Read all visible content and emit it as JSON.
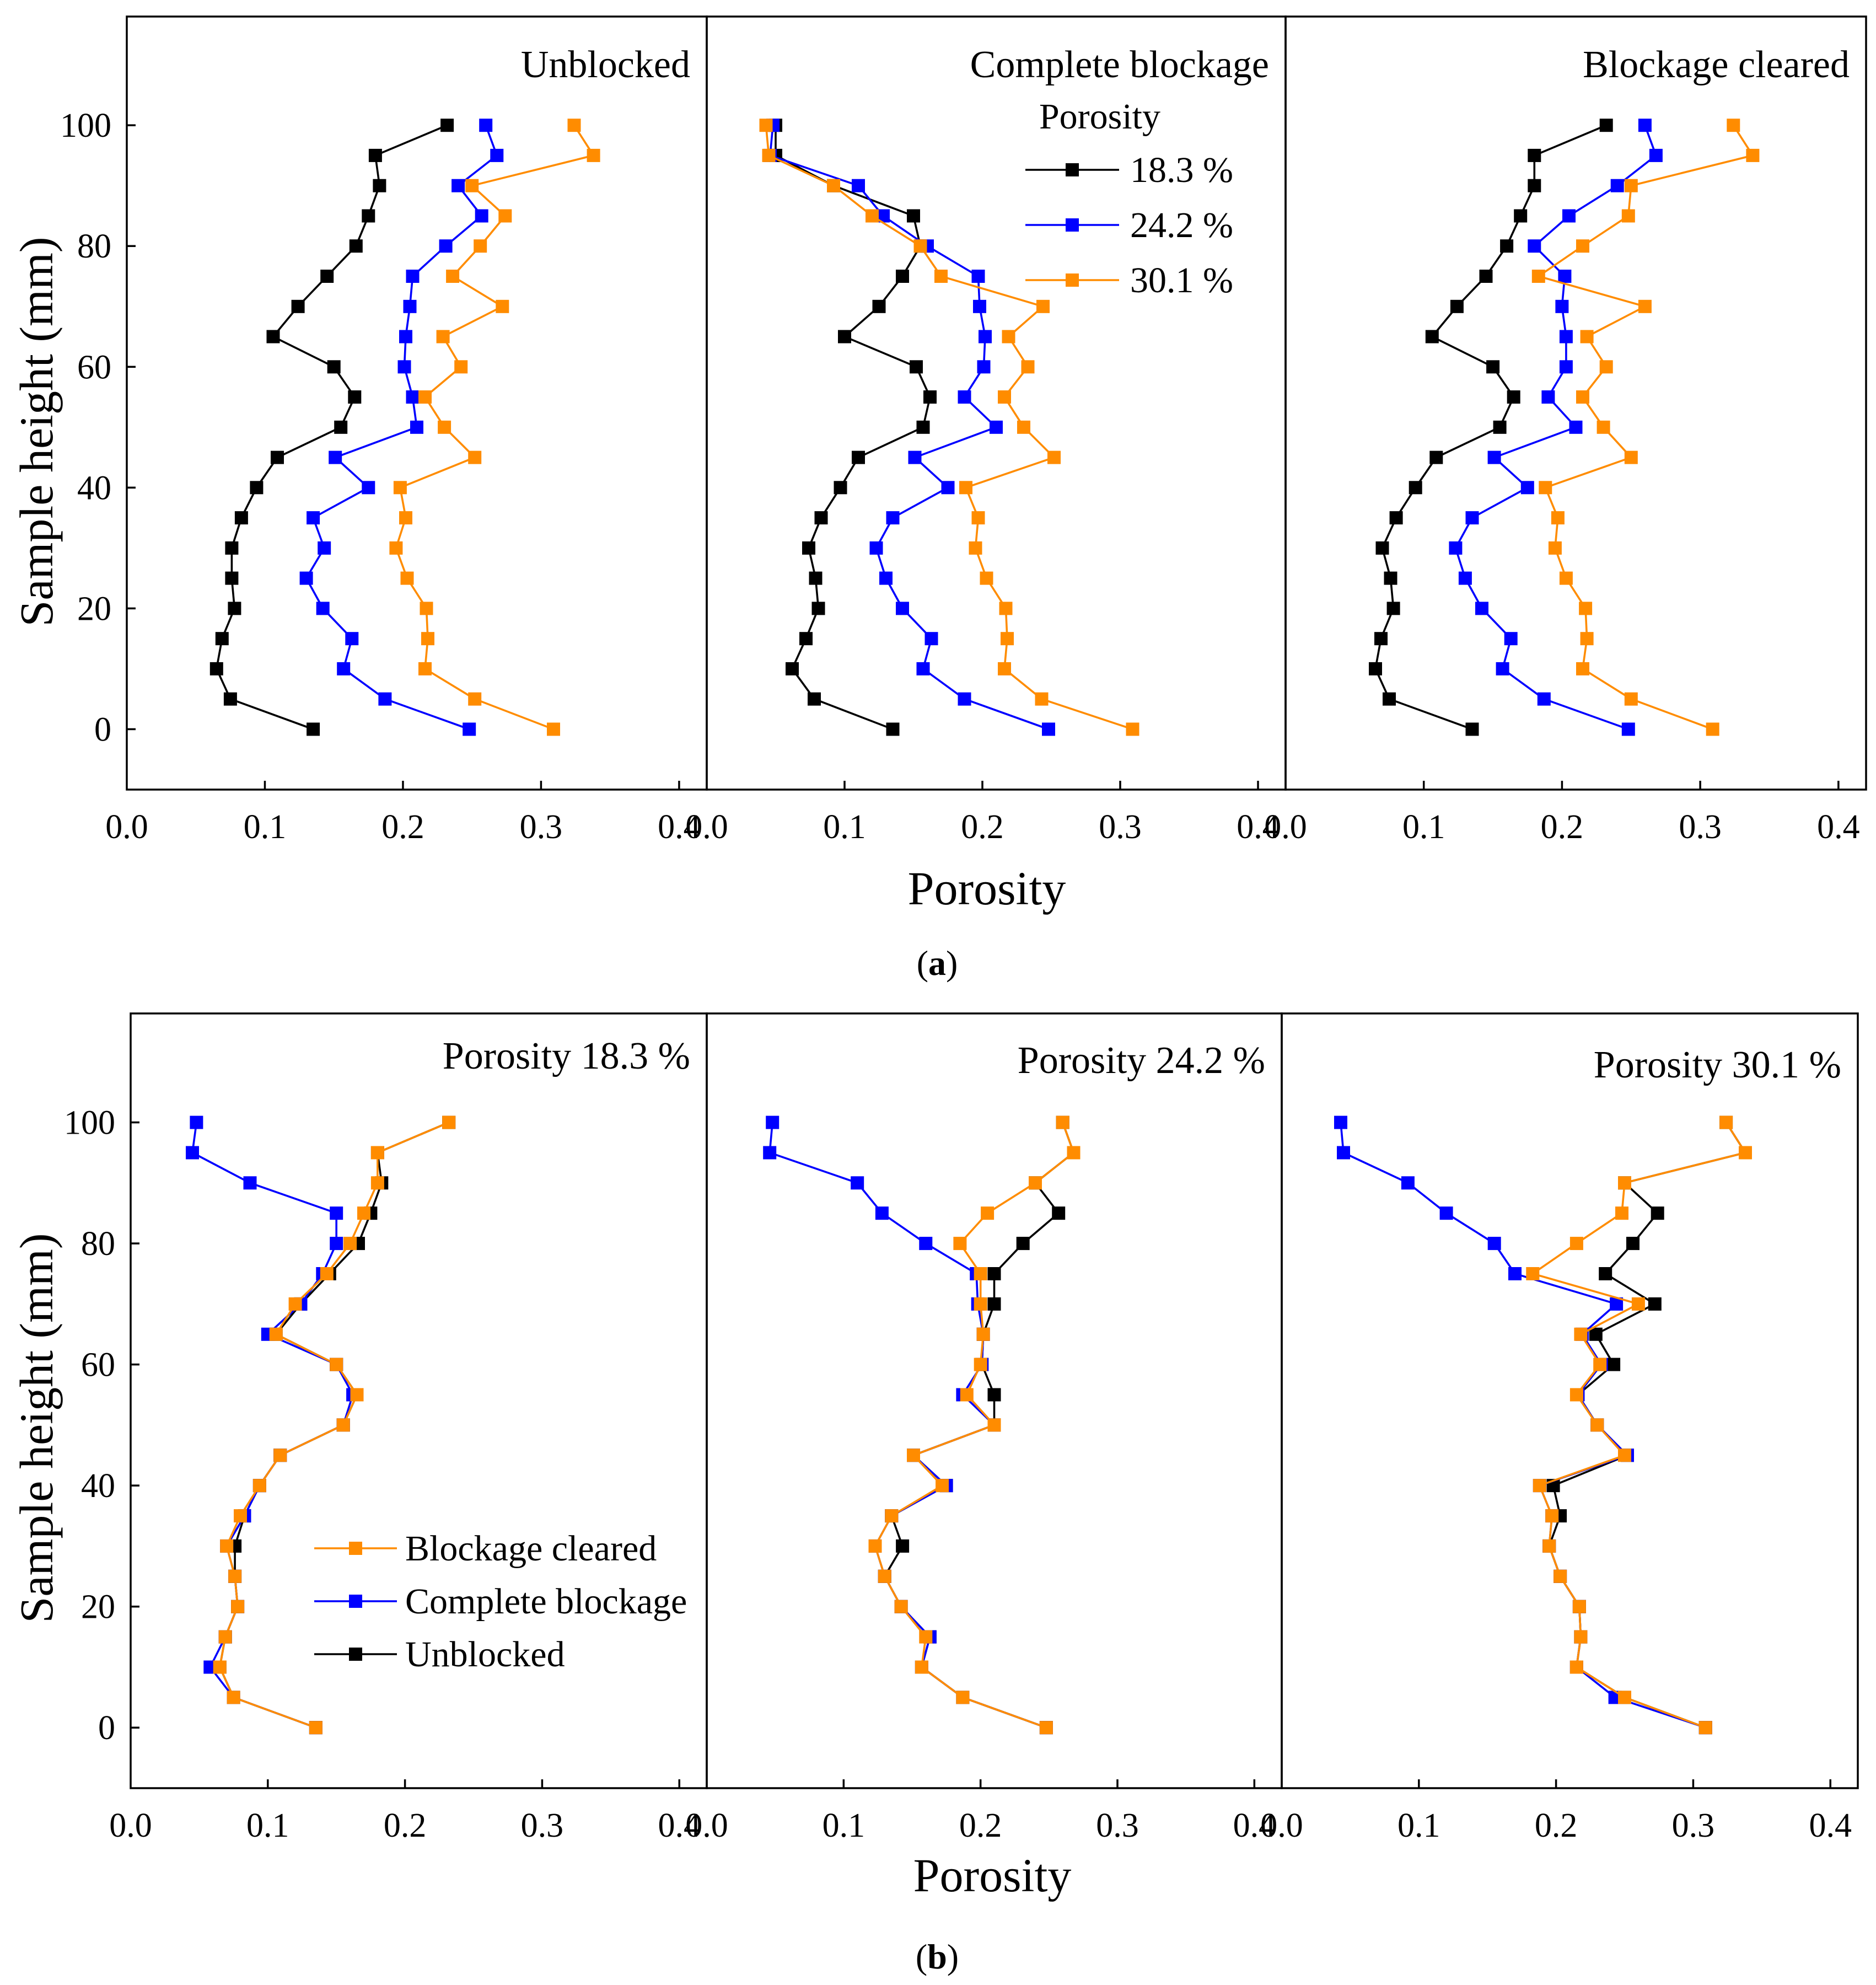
{
  "colors": {
    "series_183": "#000000",
    "series_242": "#0000ff",
    "series_301": "#ff8c00",
    "unblocked": "#000000",
    "complete_blockage": "#0000ff",
    "blockage_cleared": "#ff8c00"
  },
  "figure_a": {
    "caption_open": "(",
    "caption_letter": "a",
    "caption_close": ")",
    "xlabel": "Porosity",
    "ylabel": "Sample height (mm)",
    "legend": {
      "title": "Porosity",
      "items": [
        "18.3 %",
        "24.2 %",
        "30.1 %"
      ]
    }
  },
  "figure_b": {
    "caption_open": "(",
    "caption_letter": "b",
    "caption_close": ")",
    "xlabel": "Porosity",
    "ylabel": "Sample height (mm)",
    "legend": {
      "items": [
        "Blockage cleared",
        "Complete blockage",
        "Unblocked"
      ]
    }
  },
  "chart_data": [
    {
      "type": "line",
      "figure": "a",
      "title": "Unblocked",
      "xlabel": "Porosity",
      "ylabel": "Sample height (mm)",
      "xlim": [
        0,
        0.42
      ],
      "ylim": [
        -10,
        118
      ],
      "xticks": [
        "0.0",
        "0.1",
        "0.2",
        "0.3",
        "0.4"
      ],
      "yticks": [
        "0",
        "20",
        "40",
        "60",
        "80",
        "100"
      ],
      "series": [
        {
          "name": "18.3 %",
          "color_key": "series_183",
          "x": [
            0.135,
            0.075,
            0.065,
            0.069,
            0.078,
            0.076,
            0.076,
            0.083,
            0.094,
            0.109,
            0.155,
            0.165,
            0.15,
            0.106,
            0.124,
            0.145,
            0.166,
            0.175,
            0.183,
            0.18,
            0.232
          ],
          "y": [
            0,
            5,
            10,
            15,
            20,
            25,
            30,
            35,
            40,
            45,
            50,
            55,
            60,
            65,
            70,
            75,
            80,
            85,
            90,
            95,
            100
          ]
        },
        {
          "name": "24.2 %",
          "color_key": "series_242",
          "x": [
            0.248,
            0.187,
            0.157,
            0.163,
            0.142,
            0.13,
            0.143,
            0.135,
            0.175,
            0.151,
            0.21,
            0.207,
            0.201,
            0.202,
            0.205,
            0.207,
            0.231,
            0.257,
            0.24,
            0.268,
            0.26
          ],
          "y": [
            0,
            5,
            10,
            15,
            20,
            25,
            30,
            35,
            40,
            45,
            50,
            55,
            60,
            65,
            70,
            75,
            80,
            85,
            90,
            95,
            100
          ]
        },
        {
          "name": "30.1 %",
          "color_key": "series_301",
          "x": [
            0.309,
            0.252,
            0.216,
            0.218,
            0.217,
            0.203,
            0.195,
            0.202,
            0.198,
            0.252,
            0.23,
            0.216,
            0.242,
            0.229,
            0.272,
            0.236,
            0.256,
            0.274,
            0.25,
            0.338,
            0.324
          ],
          "y": [
            0,
            5,
            10,
            15,
            20,
            25,
            30,
            35,
            40,
            45,
            50,
            55,
            60,
            65,
            70,
            75,
            80,
            85,
            90,
            95,
            100
          ]
        }
      ]
    },
    {
      "type": "line",
      "figure": "a",
      "title": "Complete blockage",
      "xlabel": "Porosity",
      "ylabel": "Sample height (mm)",
      "xlim": [
        0,
        0.42
      ],
      "ylim": [
        -10,
        118
      ],
      "xticks": [
        "0.0",
        "0.1",
        "0.2",
        "0.3",
        "0.4"
      ],
      "yticks": [
        "0",
        "20",
        "40",
        "60",
        "80",
        "100"
      ],
      "series": [
        {
          "name": "18.3 %",
          "color_key": "series_183",
          "x": [
            0.135,
            0.078,
            0.062,
            0.072,
            0.081,
            0.079,
            0.074,
            0.083,
            0.097,
            0.11,
            0.157,
            0.162,
            0.152,
            0.1,
            0.125,
            0.142,
            0.155,
            0.15,
            0.092,
            0.05,
            0.05
          ],
          "y": [
            0,
            5,
            10,
            15,
            20,
            25,
            30,
            35,
            40,
            45,
            50,
            55,
            60,
            65,
            70,
            75,
            80,
            85,
            90,
            95,
            100
          ]
        },
        {
          "name": "24.2 %",
          "color_key": "series_242",
          "x": [
            0.248,
            0.187,
            0.157,
            0.163,
            0.142,
            0.13,
            0.123,
            0.135,
            0.175,
            0.151,
            0.21,
            0.187,
            0.201,
            0.202,
            0.198,
            0.197,
            0.16,
            0.128,
            0.11,
            0.046,
            0.048
          ],
          "y": [
            0,
            5,
            10,
            15,
            20,
            25,
            30,
            35,
            40,
            45,
            50,
            55,
            60,
            65,
            70,
            75,
            80,
            85,
            90,
            95,
            100
          ]
        },
        {
          "name": "30.1 %",
          "color_key": "series_301",
          "x": [
            0.309,
            0.243,
            0.216,
            0.218,
            0.217,
            0.203,
            0.195,
            0.197,
            0.188,
            0.252,
            0.23,
            0.216,
            0.233,
            0.219,
            0.244,
            0.17,
            0.155,
            0.12,
            0.092,
            0.045,
            0.043
          ],
          "y": [
            0,
            5,
            10,
            15,
            20,
            25,
            30,
            35,
            40,
            45,
            50,
            55,
            60,
            65,
            70,
            75,
            80,
            85,
            90,
            95,
            100
          ]
        }
      ]
    },
    {
      "type": "line",
      "figure": "a",
      "title": "Blockage cleared",
      "xlabel": "Porosity",
      "ylabel": "Sample height (mm)",
      "xlim": [
        0,
        0.42
      ],
      "ylim": [
        -10,
        118
      ],
      "xticks": [
        "0.0",
        "0.1",
        "0.2",
        "0.3",
        "0.4"
      ],
      "yticks": [
        "0",
        "20",
        "40",
        "60",
        "80",
        "100"
      ],
      "series": [
        {
          "name": "18.3 %",
          "color_key": "series_183",
          "x": [
            0.135,
            0.075,
            0.065,
            0.069,
            0.078,
            0.076,
            0.07,
            0.08,
            0.094,
            0.109,
            0.155,
            0.165,
            0.15,
            0.106,
            0.124,
            0.145,
            0.16,
            0.17,
            0.18,
            0.18,
            0.232
          ],
          "y": [
            0,
            5,
            10,
            15,
            20,
            25,
            30,
            35,
            40,
            45,
            50,
            55,
            60,
            65,
            70,
            75,
            80,
            85,
            90,
            95,
            100
          ]
        },
        {
          "name": "24.2 %",
          "color_key": "series_242",
          "x": [
            0.248,
            0.187,
            0.157,
            0.163,
            0.142,
            0.13,
            0.123,
            0.135,
            0.175,
            0.151,
            0.21,
            0.19,
            0.203,
            0.203,
            0.2,
            0.202,
            0.18,
            0.205,
            0.24,
            0.268,
            0.26
          ],
          "y": [
            0,
            5,
            10,
            15,
            20,
            25,
            30,
            35,
            40,
            45,
            50,
            55,
            60,
            65,
            70,
            75,
            80,
            85,
            90,
            95,
            100
          ]
        },
        {
          "name": "30.1 %",
          "color_key": "series_301",
          "x": [
            0.309,
            0.25,
            0.215,
            0.218,
            0.217,
            0.203,
            0.195,
            0.197,
            0.188,
            0.25,
            0.23,
            0.215,
            0.232,
            0.218,
            0.26,
            0.183,
            0.215,
            0.248,
            0.25,
            0.338,
            0.324
          ],
          "y": [
            0,
            5,
            10,
            15,
            20,
            25,
            30,
            35,
            40,
            45,
            50,
            55,
            60,
            65,
            70,
            75,
            80,
            85,
            90,
            95,
            100
          ]
        }
      ]
    },
    {
      "type": "line",
      "figure": "b",
      "title": "Porosity 18.3 %",
      "xlabel": "Porosity",
      "ylabel": "Sample height (mm)",
      "xlim": [
        0,
        0.42
      ],
      "ylim": [
        -10,
        118
      ],
      "xticks": [
        "0.0",
        "0.1",
        "0.2",
        "0.3",
        "0.4"
      ],
      "yticks": [
        "0",
        "20",
        "40",
        "60",
        "80",
        "100"
      ],
      "series": [
        {
          "name": "Unblocked",
          "color_key": "unblocked",
          "x": [
            0.135,
            0.075,
            0.065,
            0.069,
            0.078,
            0.076,
            0.076,
            0.083,
            0.094,
            0.109,
            0.155,
            0.165,
            0.15,
            0.106,
            0.124,
            0.145,
            0.166,
            0.175,
            0.183,
            0.18,
            0.232
          ],
          "y": [
            0,
            5,
            10,
            15,
            20,
            25,
            30,
            35,
            40,
            45,
            50,
            55,
            60,
            65,
            70,
            75,
            80,
            85,
            90,
            95,
            100
          ]
        },
        {
          "name": "Complete blockage",
          "color_key": "complete_blockage",
          "x": [
            0.135,
            0.075,
            0.058,
            0.069,
            0.078,
            0.076,
            0.07,
            0.083,
            0.094,
            0.109,
            0.155,
            0.162,
            0.15,
            0.1,
            0.124,
            0.14,
            0.15,
            0.15,
            0.087,
            0.045,
            0.048
          ],
          "y": [
            0,
            5,
            10,
            15,
            20,
            25,
            30,
            35,
            40,
            45,
            50,
            55,
            60,
            65,
            70,
            75,
            80,
            85,
            90,
            95,
            100
          ]
        },
        {
          "name": "Blockage cleared",
          "color_key": "blockage_cleared",
          "x": [
            0.135,
            0.075,
            0.065,
            0.069,
            0.078,
            0.076,
            0.07,
            0.08,
            0.094,
            0.109,
            0.155,
            0.165,
            0.15,
            0.106,
            0.12,
            0.143,
            0.16,
            0.17,
            0.18,
            0.18,
            0.232
          ],
          "y": [
            0,
            5,
            10,
            15,
            20,
            25,
            30,
            35,
            40,
            45,
            50,
            55,
            60,
            65,
            70,
            75,
            80,
            85,
            90,
            95,
            100
          ]
        }
      ]
    },
    {
      "type": "line",
      "figure": "b",
      "title": "Porosity 24.2 %",
      "xlabel": "Porosity",
      "ylabel": "Sample height (mm)",
      "xlim": [
        0,
        0.42
      ],
      "ylim": [
        -10,
        118
      ],
      "xticks": [
        "0.0",
        "0.1",
        "0.2",
        "0.3",
        "0.4"
      ],
      "yticks": [
        "0",
        "20",
        "40",
        "60",
        "80",
        "100"
      ],
      "series": [
        {
          "name": "Unblocked",
          "color_key": "unblocked",
          "x": [
            0.248,
            0.187,
            0.157,
            0.163,
            0.142,
            0.13,
            0.143,
            0.135,
            0.175,
            0.151,
            0.21,
            0.21,
            0.201,
            0.202,
            0.21,
            0.21,
            0.231,
            0.257,
            0.24,
            0.268,
            0.26
          ],
          "y": [
            0,
            5,
            10,
            15,
            20,
            25,
            30,
            35,
            40,
            45,
            50,
            55,
            60,
            65,
            70,
            75,
            80,
            85,
            90,
            95,
            100
          ]
        },
        {
          "name": "Complete blockage",
          "color_key": "complete_blockage",
          "x": [
            0.248,
            0.187,
            0.157,
            0.163,
            0.142,
            0.13,
            0.123,
            0.135,
            0.175,
            0.151,
            0.21,
            0.187,
            0.201,
            0.202,
            0.198,
            0.197,
            0.16,
            0.128,
            0.11,
            0.046,
            0.048
          ],
          "y": [
            0,
            5,
            10,
            15,
            20,
            25,
            30,
            35,
            40,
            45,
            50,
            55,
            60,
            65,
            70,
            75,
            80,
            85,
            90,
            95,
            100
          ]
        },
        {
          "name": "Blockage cleared",
          "color_key": "blockage_cleared",
          "x": [
            0.248,
            0.187,
            0.157,
            0.16,
            0.142,
            0.13,
            0.123,
            0.135,
            0.172,
            0.151,
            0.21,
            0.19,
            0.2,
            0.202,
            0.2,
            0.2,
            0.185,
            0.205,
            0.24,
            0.268,
            0.26
          ],
          "y": [
            0,
            5,
            10,
            15,
            20,
            25,
            30,
            35,
            40,
            45,
            50,
            55,
            60,
            65,
            70,
            75,
            80,
            85,
            90,
            95,
            100
          ]
        }
      ]
    },
    {
      "type": "line",
      "figure": "b",
      "title": "Porosity 30.1 %",
      "xlabel": "Porosity",
      "ylabel": "Sample height (mm)",
      "xlim": [
        0,
        0.42
      ],
      "ylim": [
        -10,
        118
      ],
      "xticks": [
        "0.0",
        "0.1",
        "0.2",
        "0.3",
        "0.4"
      ],
      "yticks": [
        "0",
        "20",
        "40",
        "60",
        "80",
        "100"
      ],
      "series": [
        {
          "name": "Unblocked",
          "color_key": "unblocked",
          "x": [
            0.309,
            0.25,
            0.215,
            0.218,
            0.217,
            0.203,
            0.195,
            0.203,
            0.198,
            0.252,
            0.23,
            0.216,
            0.242,
            0.229,
            0.272,
            0.236,
            0.256,
            0.274,
            0.25,
            0.338,
            0.324
          ],
          "y": [
            0,
            5,
            10,
            15,
            20,
            25,
            30,
            35,
            40,
            45,
            50,
            55,
            60,
            65,
            70,
            75,
            80,
            85,
            90,
            95,
            100
          ]
        },
        {
          "name": "Complete blockage",
          "color_key": "complete_blockage",
          "x": [
            0.309,
            0.243,
            0.215,
            0.218,
            0.217,
            0.203,
            0.195,
            0.197,
            0.188,
            0.252,
            0.23,
            0.216,
            0.233,
            0.219,
            0.244,
            0.17,
            0.155,
            0.12,
            0.092,
            0.045,
            0.043
          ],
          "y": [
            0,
            5,
            10,
            15,
            20,
            25,
            30,
            35,
            40,
            45,
            50,
            55,
            60,
            65,
            70,
            75,
            80,
            85,
            90,
            95,
            100
          ]
        },
        {
          "name": "Blockage cleared",
          "color_key": "blockage_cleared",
          "x": [
            0.309,
            0.25,
            0.215,
            0.218,
            0.217,
            0.203,
            0.195,
            0.197,
            0.188,
            0.25,
            0.23,
            0.215,
            0.232,
            0.218,
            0.26,
            0.183,
            0.215,
            0.248,
            0.25,
            0.338,
            0.324
          ],
          "y": [
            0,
            5,
            10,
            15,
            20,
            25,
            30,
            35,
            40,
            45,
            50,
            55,
            60,
            65,
            70,
            75,
            80,
            85,
            90,
            95,
            100
          ]
        }
      ]
    }
  ]
}
